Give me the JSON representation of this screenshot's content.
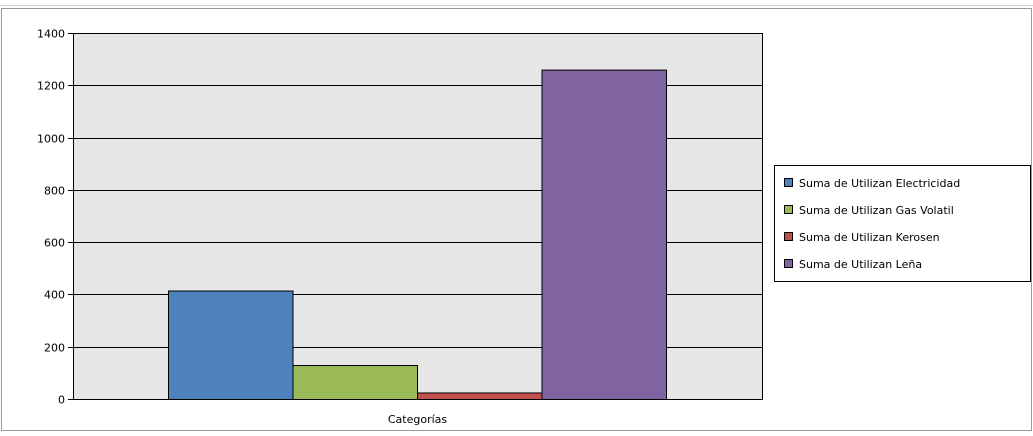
{
  "chart_data": {
    "type": "bar",
    "categories": [
      "Categorías"
    ],
    "series": [
      {
        "name": "Suma de Utilizan Electricidad",
        "values": [
          415
        ],
        "color": "#4F81BD"
      },
      {
        "name": "Suma de Utilizan Gas Volatil",
        "values": [
          130
        ],
        "color": "#9BBB59"
      },
      {
        "name": "Suma de Utilizan Kerosen",
        "values": [
          25
        ],
        "color": "#C0504D"
      },
      {
        "name": "Suma de Utilizan Leña",
        "values": [
          1260
        ],
        "color": "#8064A2"
      }
    ],
    "title": "",
    "xlabel": "",
    "ylabel": "",
    "ylim": [
      0,
      1400
    ],
    "yticks": [
      "0",
      "200",
      "400",
      "600",
      "800",
      "1000",
      "1200",
      "1400"
    ],
    "grid": true,
    "legend_position": "right",
    "plot_background": "#E6E6E6"
  }
}
